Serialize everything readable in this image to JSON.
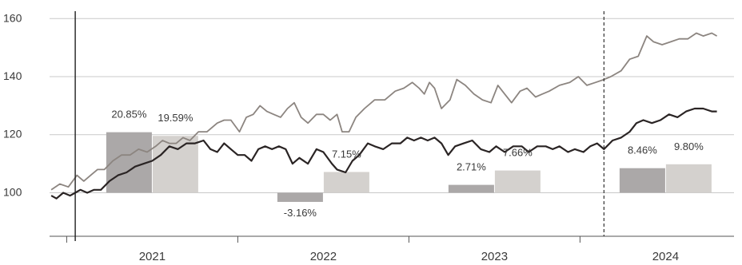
{
  "chart_data": {
    "type": "bar+line",
    "title": "",
    "xlabel": "",
    "ylabel": "",
    "ylim": [
      85,
      162
    ],
    "y_ticks": [
      100,
      120,
      140,
      160
    ],
    "y_tick_labels": [
      "100",
      "120",
      "140",
      "160"
    ],
    "x_range": [
      2020.9,
      2024.9
    ],
    "year_ticks": [
      2021,
      2022,
      2023,
      2024,
      2025
    ],
    "year_labels": [
      {
        "x": 2021.5,
        "label": "2021"
      },
      {
        "x": 2022.5,
        "label": "2022"
      },
      {
        "x": 2023.5,
        "label": "2023"
      },
      {
        "x": 2024.5,
        "label": "2024"
      }
    ],
    "solid_vline_x": 2021.05,
    "dashed_vline_x": 2024.14,
    "grid": "horizontal",
    "bar_series": [
      {
        "color": "#aba8a8",
        "values": [
          20.85,
          -3.16,
          2.71,
          8.46
        ],
        "labels": [
          "20.85%",
          "-3.16%",
          "2.71%",
          "8.46%"
        ]
      },
      {
        "color": "#d4d1ce",
        "values": [
          19.59,
          7.15,
          7.66,
          9.8
        ],
        "labels": [
          "19.59%",
          "7.15%",
          "7.66%",
          "9.80%"
        ]
      }
    ],
    "bar_categories": [
      "2021",
      "2022",
      "2023",
      "2024"
    ],
    "bar_baseline": 100,
    "line_series": [
      {
        "color": "#8c8580",
        "width": 1.8,
        "points": [
          [
            2020.91,
            101
          ],
          [
            2020.96,
            103
          ],
          [
            2021.01,
            102
          ],
          [
            2021.06,
            106
          ],
          [
            2021.1,
            104
          ],
          [
            2021.14,
            106
          ],
          [
            2021.18,
            108
          ],
          [
            2021.22,
            108
          ],
          [
            2021.27,
            111
          ],
          [
            2021.32,
            113
          ],
          [
            2021.37,
            113
          ],
          [
            2021.42,
            115
          ],
          [
            2021.47,
            114
          ],
          [
            2021.52,
            116
          ],
          [
            2021.56,
            118
          ],
          [
            2021.6,
            117
          ],
          [
            2021.64,
            117
          ],
          [
            2021.68,
            119
          ],
          [
            2021.72,
            118
          ],
          [
            2021.77,
            121
          ],
          [
            2021.82,
            121
          ],
          [
            2021.88,
            124
          ],
          [
            2021.92,
            125
          ],
          [
            2021.96,
            125
          ],
          [
            2022.01,
            121
          ],
          [
            2022.05,
            126
          ],
          [
            2022.09,
            127
          ],
          [
            2022.13,
            130
          ],
          [
            2022.17,
            128
          ],
          [
            2022.21,
            127
          ],
          [
            2022.25,
            126
          ],
          [
            2022.29,
            129
          ],
          [
            2022.33,
            131
          ],
          [
            2022.37,
            126
          ],
          [
            2022.41,
            124
          ],
          [
            2022.46,
            127
          ],
          [
            2022.5,
            127
          ],
          [
            2022.54,
            125
          ],
          [
            2022.58,
            127
          ],
          [
            2022.61,
            121
          ],
          [
            2022.65,
            121
          ],
          [
            2022.69,
            126
          ],
          [
            2022.74,
            129
          ],
          [
            2022.8,
            132
          ],
          [
            2022.86,
            132
          ],
          [
            2022.92,
            135
          ],
          [
            2022.97,
            136
          ],
          [
            2023.02,
            138
          ],
          [
            2023.06,
            136
          ],
          [
            2023.09,
            134
          ],
          [
            2023.12,
            138
          ],
          [
            2023.15,
            136
          ],
          [
            2023.19,
            129
          ],
          [
            2023.24,
            132
          ],
          [
            2023.28,
            139
          ],
          [
            2023.33,
            137
          ],
          [
            2023.38,
            134
          ],
          [
            2023.43,
            132
          ],
          [
            2023.48,
            131
          ],
          [
            2023.52,
            137
          ],
          [
            2023.56,
            134
          ],
          [
            2023.6,
            131
          ],
          [
            2023.65,
            135
          ],
          [
            2023.69,
            136
          ],
          [
            2023.74,
            133
          ],
          [
            2023.78,
            134
          ],
          [
            2023.82,
            135
          ],
          [
            2023.88,
            137
          ],
          [
            2023.94,
            138
          ],
          [
            2023.99,
            140
          ],
          [
            2024.04,
            137
          ],
          [
            2024.09,
            138
          ],
          [
            2024.14,
            139
          ],
          [
            2024.18,
            140
          ],
          [
            2024.24,
            142
          ],
          [
            2024.29,
            146
          ],
          [
            2024.34,
            147
          ],
          [
            2024.39,
            154
          ],
          [
            2024.43,
            152
          ],
          [
            2024.48,
            151
          ],
          [
            2024.53,
            152
          ],
          [
            2024.58,
            153
          ],
          [
            2024.63,
            153
          ],
          [
            2024.68,
            155
          ],
          [
            2024.72,
            154
          ],
          [
            2024.77,
            155
          ],
          [
            2024.8,
            154
          ]
        ]
      },
      {
        "color": "#2a2424",
        "width": 2.2,
        "points": [
          [
            2020.91,
            99
          ],
          [
            2020.94,
            98
          ],
          [
            2020.98,
            100
          ],
          [
            2021.02,
            99
          ],
          [
            2021.05,
            100
          ],
          [
            2021.08,
            101
          ],
          [
            2021.12,
            100
          ],
          [
            2021.16,
            101
          ],
          [
            2021.2,
            101
          ],
          [
            2021.25,
            104
          ],
          [
            2021.3,
            106
          ],
          [
            2021.35,
            107
          ],
          [
            2021.4,
            109
          ],
          [
            2021.45,
            110
          ],
          [
            2021.5,
            111
          ],
          [
            2021.55,
            113
          ],
          [
            2021.6,
            116
          ],
          [
            2021.65,
            115
          ],
          [
            2021.7,
            117
          ],
          [
            2021.75,
            117
          ],
          [
            2021.8,
            118
          ],
          [
            2021.84,
            115
          ],
          [
            2021.88,
            114
          ],
          [
            2021.92,
            117
          ],
          [
            2021.96,
            115
          ],
          [
            2022.0,
            113
          ],
          [
            2022.04,
            113
          ],
          [
            2022.08,
            111
          ],
          [
            2022.12,
            115
          ],
          [
            2022.16,
            116
          ],
          [
            2022.2,
            115
          ],
          [
            2022.24,
            116
          ],
          [
            2022.28,
            115
          ],
          [
            2022.32,
            110
          ],
          [
            2022.36,
            112
          ],
          [
            2022.41,
            110
          ],
          [
            2022.46,
            115
          ],
          [
            2022.5,
            114
          ],
          [
            2022.55,
            110
          ],
          [
            2022.58,
            108
          ],
          [
            2022.63,
            107
          ],
          [
            2022.67,
            111
          ],
          [
            2022.71,
            113
          ],
          [
            2022.76,
            117
          ],
          [
            2022.8,
            116
          ],
          [
            2022.85,
            115
          ],
          [
            2022.9,
            117
          ],
          [
            2022.95,
            117
          ],
          [
            2022.99,
            119
          ],
          [
            2023.03,
            118
          ],
          [
            2023.07,
            119
          ],
          [
            2023.11,
            118
          ],
          [
            2023.15,
            119
          ],
          [
            2023.19,
            117
          ],
          [
            2023.23,
            113
          ],
          [
            2023.27,
            116
          ],
          [
            2023.32,
            117
          ],
          [
            2023.37,
            118
          ],
          [
            2023.42,
            115
          ],
          [
            2023.47,
            114
          ],
          [
            2023.51,
            116
          ],
          [
            2023.56,
            114
          ],
          [
            2023.61,
            116
          ],
          [
            2023.66,
            116
          ],
          [
            2023.7,
            114
          ],
          [
            2023.75,
            116
          ],
          [
            2023.8,
            116
          ],
          [
            2023.84,
            115
          ],
          [
            2023.88,
            116
          ],
          [
            2023.93,
            114
          ],
          [
            2023.97,
            115
          ],
          [
            2024.02,
            114
          ],
          [
            2024.06,
            116
          ],
          [
            2024.1,
            117
          ],
          [
            2024.14,
            115
          ],
          [
            2024.19,
            118
          ],
          [
            2024.24,
            119
          ],
          [
            2024.29,
            121
          ],
          [
            2024.33,
            124
          ],
          [
            2024.37,
            125
          ],
          [
            2024.42,
            124
          ],
          [
            2024.47,
            125
          ],
          [
            2024.52,
            127
          ],
          [
            2024.57,
            126
          ],
          [
            2024.62,
            128
          ],
          [
            2024.67,
            129
          ],
          [
            2024.72,
            129
          ],
          [
            2024.77,
            128
          ],
          [
            2024.8,
            128
          ]
        ]
      }
    ]
  }
}
